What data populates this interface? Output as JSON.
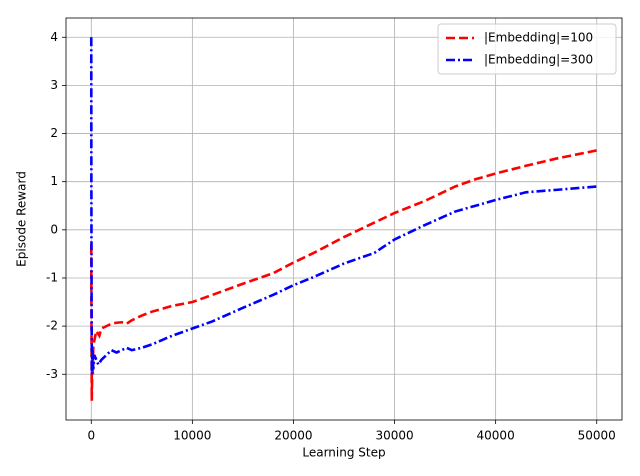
{
  "chart_data": {
    "type": "line",
    "xlabel": "Learning Step",
    "ylabel": "Episode Reward",
    "xlim": [
      -2500,
      52500
    ],
    "ylim": [
      -3.95,
      4.4
    ],
    "xticks": [
      0,
      10000,
      20000,
      30000,
      40000,
      50000
    ],
    "yticks": [
      -3,
      -2,
      -1,
      0,
      1,
      2,
      3,
      4
    ],
    "grid": true,
    "legend": "upper right",
    "series": [
      {
        "name": "|Embedding|=100",
        "color": "#ff0000",
        "style": "dashed",
        "x": [
          0,
          20,
          50,
          100,
          150,
          200,
          300,
          500,
          800,
          1000,
          1500,
          2000,
          2500,
          3000,
          3500,
          4000,
          5000,
          6000,
          8000,
          10000,
          12000,
          15000,
          18000,
          20000,
          22000,
          25000,
          28000,
          30000,
          33000,
          36000,
          38000,
          40000,
          43000,
          46000,
          50000
        ],
        "values": [
          -0.3,
          -2.0,
          -3.55,
          -2.8,
          -3.0,
          -2.4,
          -2.3,
          -2.1,
          -2.2,
          -2.05,
          -2.0,
          -1.95,
          -1.93,
          -1.92,
          -1.95,
          -1.88,
          -1.78,
          -1.7,
          -1.58,
          -1.5,
          -1.35,
          -1.12,
          -0.9,
          -0.68,
          -0.48,
          -0.15,
          0.15,
          0.35,
          0.6,
          0.9,
          1.05,
          1.17,
          1.33,
          1.48,
          1.65
        ]
      },
      {
        "name": "|Embedding|=300",
        "color": "#0000ff",
        "style": "dashdot",
        "x": [
          0,
          10,
          30,
          60,
          100,
          200,
          300,
          500,
          700,
          1000,
          1500,
          2000,
          2500,
          3000,
          3500,
          4000,
          5000,
          6000,
          8000,
          10000,
          12000,
          15000,
          18000,
          20000,
          22000,
          25000,
          28000,
          30000,
          33000,
          36000,
          40000,
          43000,
          46000,
          50000
        ],
        "values": [
          4.0,
          1.0,
          -1.5,
          -3.0,
          -2.5,
          -2.9,
          -2.6,
          -2.7,
          -2.8,
          -2.7,
          -2.6,
          -2.5,
          -2.55,
          -2.5,
          -2.45,
          -2.5,
          -2.45,
          -2.38,
          -2.2,
          -2.05,
          -1.9,
          -1.62,
          -1.35,
          -1.15,
          -0.98,
          -0.7,
          -0.48,
          -0.2,
          0.1,
          0.38,
          0.62,
          0.78,
          0.83,
          0.9
        ]
      }
    ]
  }
}
